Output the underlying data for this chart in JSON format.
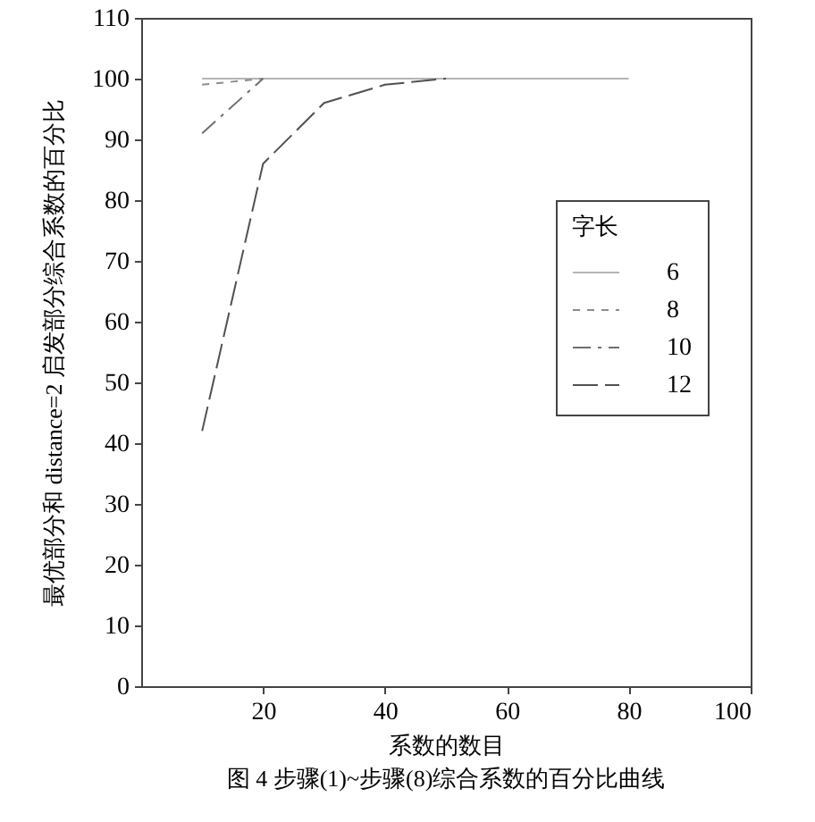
{
  "chart_data": {
    "type": "line",
    "xlabel": "系数的数目",
    "ylabel": "最优部分和 distance=2 启发部分综合系数的百分比",
    "legend_title": "字长",
    "annotations": [
      "图 4  步骤(1)~步骤(8)综合系数的百分比曲线"
    ],
    "xlim": [
      0,
      100
    ],
    "xticks": [
      20,
      40,
      60,
      80,
      100
    ],
    "ylim": [
      0,
      110
    ],
    "yticks": [
      0,
      10,
      20,
      30,
      40,
      50,
      60,
      70,
      80,
      90,
      100,
      110
    ],
    "grid": false,
    "legend": "right",
    "series": [
      {
        "name": "6",
        "color": "#b4b4b4",
        "line_style": "solid",
        "x": [
          10,
          80
        ],
        "values": [
          100,
          100
        ]
      },
      {
        "name": "8",
        "color": "#8c8c8c",
        "line_style": "dashed",
        "x": [
          10,
          20
        ],
        "values": [
          99,
          100
        ]
      },
      {
        "name": "10",
        "color": "#6e6e6e",
        "line_style": "dashdot",
        "x": [
          10,
          20
        ],
        "values": [
          91,
          100
        ]
      },
      {
        "name": "12",
        "color": "#505050",
        "line_style": "longdash",
        "x": [
          10,
          20,
          30,
          40,
          50
        ],
        "values": [
          42,
          86,
          96,
          99,
          100
        ]
      }
    ]
  }
}
